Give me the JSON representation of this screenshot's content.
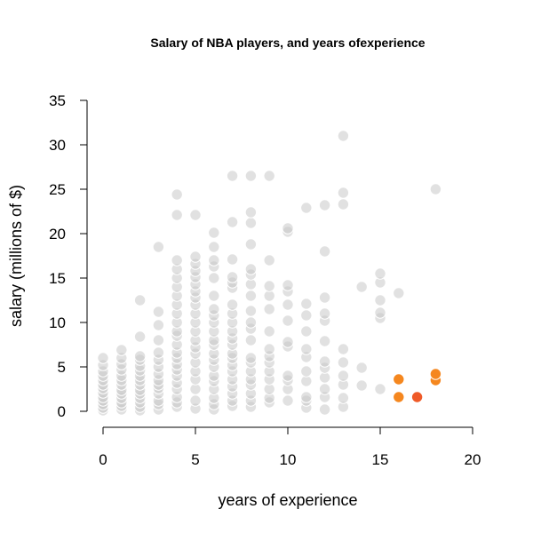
{
  "chart_data": {
    "type": "scatter",
    "title": "Salary of NBA players, and years ofexperience",
    "xlabel": "years of experience",
    "ylabel": "salary (millions of $)",
    "xlim": [
      0,
      20
    ],
    "ylim": [
      0,
      35
    ],
    "xticks": [
      "0",
      "5",
      "10",
      "15",
      "20"
    ],
    "yticks": [
      "0",
      "5",
      "10",
      "15",
      "20",
      "25",
      "30",
      "35"
    ],
    "grid": false,
    "legend": "none",
    "colors": {
      "default": "#c8c8c8",
      "highlight": "#f5871f",
      "highlight_dark": "#ef5a28"
    },
    "series": [
      {
        "group": "default",
        "points": [
          [
            0,
            0.1
          ],
          [
            0,
            0.4
          ],
          [
            0,
            0.8
          ],
          [
            0,
            1.2
          ],
          [
            0,
            1.6
          ],
          [
            0,
            2.1
          ],
          [
            0,
            2.6
          ],
          [
            0,
            3.0
          ],
          [
            0,
            3.5
          ],
          [
            0,
            4.0
          ],
          [
            0,
            4.5
          ],
          [
            0,
            5.2
          ],
          [
            0,
            6.0
          ],
          [
            1,
            0.2
          ],
          [
            1,
            0.6
          ],
          [
            1,
            1.0
          ],
          [
            1,
            1.5
          ],
          [
            1,
            2.0
          ],
          [
            1,
            2.4
          ],
          [
            1,
            3.0
          ],
          [
            1,
            3.5
          ],
          [
            1,
            4.0
          ],
          [
            1,
            4.7
          ],
          [
            1,
            5.3
          ],
          [
            1,
            6.0
          ],
          [
            1,
            6.9
          ],
          [
            2,
            0.1
          ],
          [
            2,
            0.5
          ],
          [
            2,
            1.0
          ],
          [
            2,
            1.5
          ],
          [
            2,
            2.0
          ],
          [
            2,
            2.4
          ],
          [
            2,
            3.0
          ],
          [
            2,
            3.5
          ],
          [
            2,
            4.0
          ],
          [
            2,
            4.6
          ],
          [
            2,
            5.1
          ],
          [
            2,
            5.8
          ],
          [
            2,
            6.2
          ],
          [
            2,
            8.4
          ],
          [
            2,
            12.5
          ],
          [
            3,
            0.2
          ],
          [
            3,
            0.8
          ],
          [
            3,
            1.2
          ],
          [
            3,
            2.0
          ],
          [
            3,
            2.6
          ],
          [
            3,
            3.0
          ],
          [
            3,
            3.5
          ],
          [
            3,
            4.2
          ],
          [
            3,
            5.0
          ],
          [
            3,
            5.8
          ],
          [
            3,
            6.6
          ],
          [
            3,
            8.0
          ],
          [
            3,
            9.7
          ],
          [
            3,
            11.2
          ],
          [
            3,
            18.5
          ],
          [
            4,
            0.5
          ],
          [
            4,
            1.0
          ],
          [
            4,
            1.6
          ],
          [
            4,
            2.5
          ],
          [
            4,
            3.2
          ],
          [
            4,
            4.0
          ],
          [
            4,
            4.7
          ],
          [
            4,
            5.3
          ],
          [
            4,
            6.0
          ],
          [
            4,
            6.6
          ],
          [
            4,
            7.5
          ],
          [
            4,
            8.5
          ],
          [
            4,
            9.0
          ],
          [
            4,
            10.0
          ],
          [
            4,
            11.0
          ],
          [
            4,
            12.0
          ],
          [
            4,
            13.0
          ],
          [
            4,
            14.0
          ],
          [
            4,
            15.0
          ],
          [
            4,
            16.0
          ],
          [
            4,
            17.0
          ],
          [
            4,
            22.1
          ],
          [
            4,
            24.4
          ],
          [
            5,
            0.3
          ],
          [
            5,
            1.2
          ],
          [
            5,
            2.5
          ],
          [
            5,
            3.6
          ],
          [
            5,
            4.5
          ],
          [
            5,
            5.5
          ],
          [
            5,
            6.5
          ],
          [
            5,
            7.2
          ],
          [
            5,
            8.0
          ],
          [
            5,
            9.0
          ],
          [
            5,
            10.0
          ],
          [
            5,
            11.0
          ],
          [
            5,
            12.0
          ],
          [
            5,
            12.8
          ],
          [
            5,
            13.5
          ],
          [
            5,
            14.3
          ],
          [
            5,
            15.1
          ],
          [
            5,
            15.8
          ],
          [
            5,
            16.6
          ],
          [
            5,
            17.4
          ],
          [
            5,
            22.1
          ],
          [
            6,
            0.2
          ],
          [
            6,
            0.8
          ],
          [
            6,
            1.5
          ],
          [
            6,
            2.5
          ],
          [
            6,
            3.4
          ],
          [
            6,
            4.0
          ],
          [
            6,
            5.0
          ],
          [
            6,
            5.8
          ],
          [
            6,
            6.5
          ],
          [
            6,
            7.5
          ],
          [
            6,
            8.0
          ],
          [
            6,
            9.0
          ],
          [
            6,
            10.0
          ],
          [
            6,
            10.8
          ],
          [
            6,
            11.5
          ],
          [
            6,
            13.0
          ],
          [
            6,
            15.0
          ],
          [
            6,
            16.3
          ],
          [
            6,
            17.0
          ],
          [
            6,
            18.5
          ],
          [
            6,
            20.1
          ],
          [
            7,
            0.6
          ],
          [
            7,
            1.2
          ],
          [
            7,
            2.0
          ],
          [
            7,
            2.8
          ],
          [
            7,
            3.6
          ],
          [
            7,
            4.5
          ],
          [
            7,
            5.2
          ],
          [
            7,
            6.0
          ],
          [
            7,
            6.5
          ],
          [
            7,
            7.5
          ],
          [
            7,
            8.2
          ],
          [
            7,
            9.0
          ],
          [
            7,
            10.0
          ],
          [
            7,
            11.0
          ],
          [
            7,
            12.0
          ],
          [
            7,
            13.9
          ],
          [
            7,
            14.5
          ],
          [
            7,
            15.1
          ],
          [
            7,
            17.1
          ],
          [
            7,
            21.3
          ],
          [
            7,
            26.5
          ],
          [
            8,
            0.5
          ],
          [
            8,
            1.2
          ],
          [
            8,
            2.0
          ],
          [
            8,
            3.0
          ],
          [
            8,
            3.6
          ],
          [
            8,
            4.5
          ],
          [
            8,
            5.5
          ],
          [
            8,
            6.0
          ],
          [
            8,
            8.0
          ],
          [
            8,
            9.3
          ],
          [
            8,
            10.0
          ],
          [
            8,
            11.3
          ],
          [
            8,
            13.0
          ],
          [
            8,
            14.3
          ],
          [
            8,
            15.4
          ],
          [
            8,
            16.0
          ],
          [
            8,
            18.8
          ],
          [
            8,
            21.2
          ],
          [
            8,
            22.4
          ],
          [
            8,
            26.5
          ],
          [
            9,
            1.0
          ],
          [
            9,
            1.5
          ],
          [
            9,
            2.5
          ],
          [
            9,
            3.6
          ],
          [
            9,
            4.5
          ],
          [
            9,
            5.5
          ],
          [
            9,
            6.2
          ],
          [
            9,
            7.0
          ],
          [
            9,
            9.0
          ],
          [
            9,
            11.5
          ],
          [
            9,
            13.0
          ],
          [
            9,
            14.1
          ],
          [
            9,
            17.0
          ],
          [
            9,
            26.5
          ],
          [
            10,
            1.2
          ],
          [
            10,
            2.5
          ],
          [
            10,
            3.5
          ],
          [
            10,
            4.0
          ],
          [
            10,
            7.3
          ],
          [
            10,
            7.8
          ],
          [
            10,
            10.2
          ],
          [
            10,
            12.0
          ],
          [
            10,
            13.5
          ],
          [
            10,
            14.2
          ],
          [
            10,
            20.2
          ],
          [
            10,
            20.6
          ],
          [
            11,
            0.4
          ],
          [
            11,
            1.2
          ],
          [
            11,
            1.6
          ],
          [
            11,
            3.4
          ],
          [
            11,
            4.5
          ],
          [
            11,
            6.1
          ],
          [
            11,
            7.0
          ],
          [
            11,
            9.0
          ],
          [
            11,
            10.8
          ],
          [
            11,
            12.1
          ],
          [
            11,
            22.9
          ],
          [
            12,
            0.2
          ],
          [
            12,
            1.6
          ],
          [
            12,
            2.5
          ],
          [
            12,
            3.8
          ],
          [
            12,
            4.9
          ],
          [
            12,
            5.6
          ],
          [
            12,
            7.9
          ],
          [
            12,
            10.2
          ],
          [
            12,
            11.0
          ],
          [
            12,
            12.8
          ],
          [
            12,
            18.0
          ],
          [
            12,
            23.2
          ],
          [
            13,
            0.5
          ],
          [
            13,
            1.5
          ],
          [
            13,
            3.0
          ],
          [
            13,
            4.0
          ],
          [
            13,
            5.5
          ],
          [
            13,
            7.0
          ],
          [
            13,
            23.3
          ],
          [
            13,
            24.6
          ],
          [
            13,
            31.0
          ],
          [
            14,
            2.9
          ],
          [
            14,
            4.9
          ],
          [
            14,
            14.0
          ],
          [
            15,
            2.5
          ],
          [
            15,
            10.5
          ],
          [
            15,
            11.1
          ],
          [
            15,
            12.5
          ],
          [
            15,
            14.5
          ],
          [
            15,
            15.5
          ],
          [
            16,
            13.3
          ],
          [
            18,
            25.0
          ]
        ]
      },
      {
        "group": "highlight",
        "points": [
          [
            16,
            1.6
          ],
          [
            16,
            3.6
          ],
          [
            18,
            3.5
          ],
          [
            18,
            4.2
          ]
        ]
      },
      {
        "group": "highlight_dark",
        "points": [
          [
            17,
            1.6
          ]
        ]
      }
    ]
  }
}
